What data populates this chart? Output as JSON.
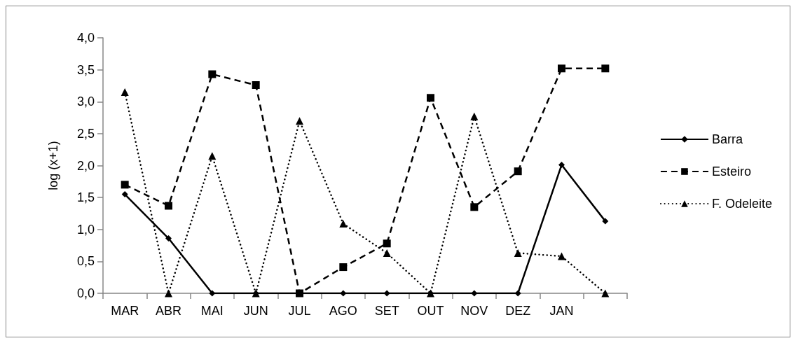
{
  "chart_data": {
    "type": "line",
    "ylabel": "log (x+1)",
    "categories": [
      "MAR",
      "ABR",
      "MAI",
      "JUN",
      "JUL",
      "AGO",
      "SET",
      "OUT",
      "NOV",
      "DEZ",
      "JAN",
      null
    ],
    "series": [
      {
        "name": "Barra",
        "color": "#000000",
        "marker": "diamond",
        "line_style": "solid",
        "values": [
          1.55,
          0.86,
          0,
          0,
          0,
          0,
          0,
          0,
          0,
          0,
          2.01,
          1.13
        ]
      },
      {
        "name": "Esteiro",
        "color": "#000000",
        "marker": "square",
        "line_style": "dashed",
        "values": [
          1.7,
          1.37,
          3.43,
          3.26,
          0,
          0.41,
          0.78,
          3.06,
          1.35,
          1.91,
          3.52,
          3.52
        ]
      },
      {
        "name": "F. Odeleite",
        "color": "#000000",
        "marker": "triangle",
        "line_style": "dotted",
        "values": [
          3.15,
          0,
          2.15,
          0,
          2.7,
          1.09,
          0.63,
          0,
          2.77,
          0.63,
          0.58,
          0
        ]
      }
    ],
    "ylim": [
      0,
      4
    ],
    "yticks": [
      {
        "value": 0,
        "label": "0,0"
      },
      {
        "value": 0.5,
        "label": "0,5"
      },
      {
        "value": 1,
        "label": "1,0"
      },
      {
        "value": 1.5,
        "label": "1,5"
      },
      {
        "value": 2,
        "label": "2,0"
      },
      {
        "value": 2.5,
        "label": "2,5"
      },
      {
        "value": 3,
        "label": "3,0"
      },
      {
        "value": 3.5,
        "label": "3,5"
      },
      {
        "value": 4,
        "label": "4,0"
      }
    ],
    "grid": false,
    "legend": "right"
  }
}
